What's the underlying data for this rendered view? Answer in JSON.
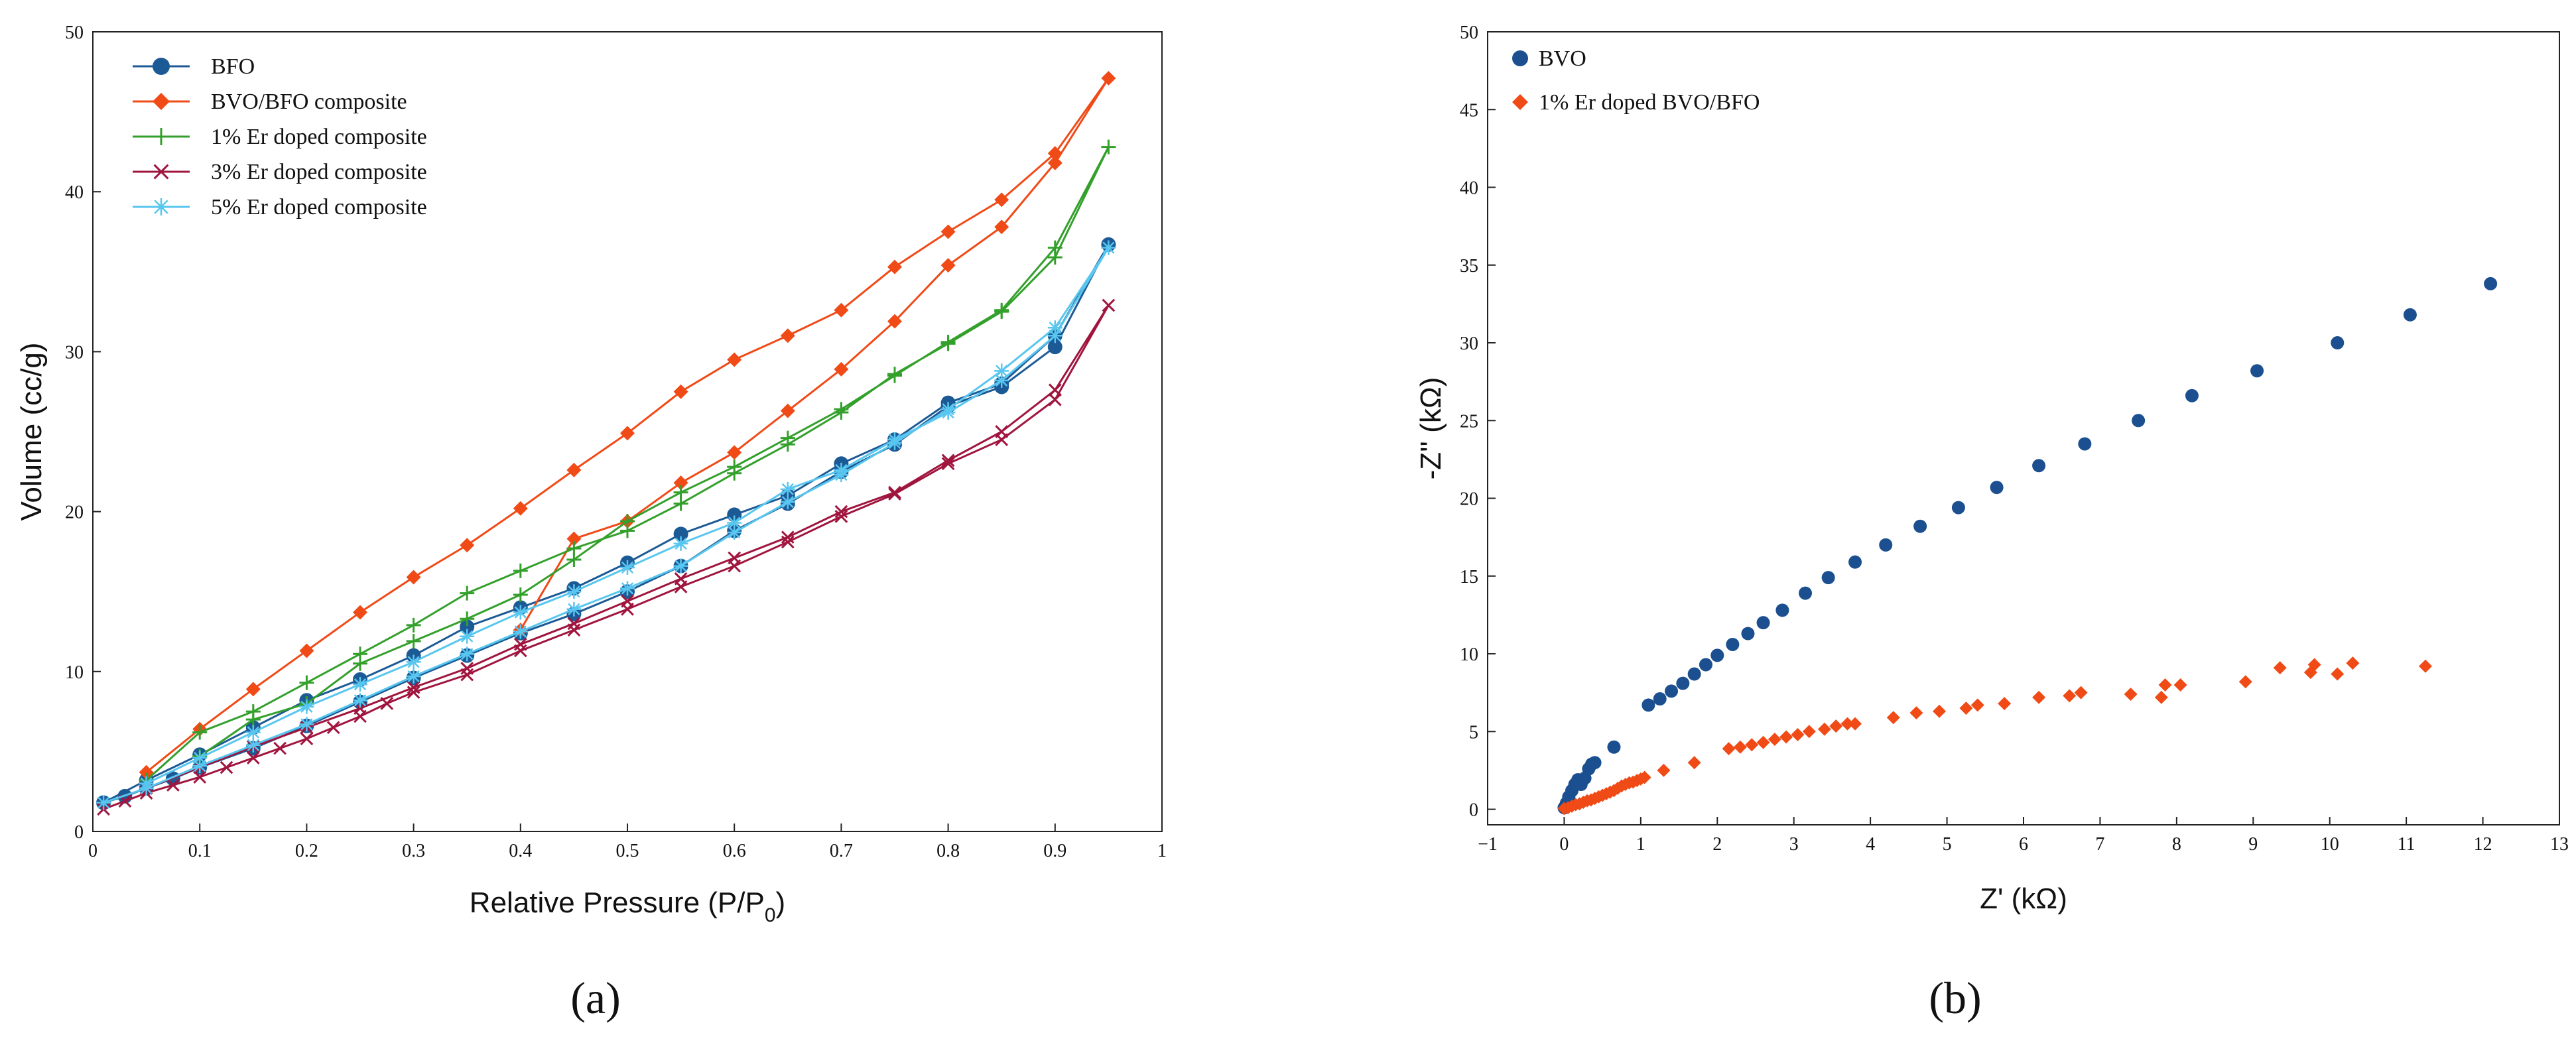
{
  "chart_data": [
    {
      "type": "line",
      "panel_label": "(a)",
      "xlabel": "Relative Pressure (P/P",
      "xlabel_subscript": "0",
      "xlabel_suffix": ")",
      "ylabel": "Volume (cc/g)",
      "xlim": [
        0,
        1
      ],
      "ylim": [
        0,
        50
      ],
      "xticks": [
        0,
        0.1,
        0.2,
        0.3,
        0.4,
        0.5,
        0.6,
        0.7,
        0.8,
        0.9,
        1
      ],
      "xtick_labels": [
        "0",
        "0.1",
        "0.2",
        "0.3",
        "0.4",
        "0.5",
        "0.6",
        "0.7",
        "0.8",
        "0.9",
        "1"
      ],
      "yticks": [
        0,
        10,
        20,
        30,
        40,
        50
      ],
      "ytick_labels": [
        "0",
        "10",
        "20",
        "30",
        "40",
        "50"
      ],
      "legend_position": "top-left",
      "series": [
        {
          "name": "BFO",
          "color": "#1c5a96",
          "marker": "circle",
          "x": [
            0.01,
            0.03,
            0.05,
            0.075,
            0.1,
            0.15,
            0.2,
            0.25,
            0.3,
            0.35,
            0.4,
            0.45,
            0.5,
            0.55,
            0.6,
            0.65,
            0.7,
            0.75,
            0.8,
            0.85,
            0.9,
            0.95,
            0.9,
            0.85,
            0.8,
            0.75,
            0.7,
            0.65,
            0.6,
            0.55,
            0.5,
            0.45,
            0.4,
            0.35,
            0.3,
            0.25,
            0.2,
            0.15,
            0.1,
            0.05,
            0.01
          ],
          "y": [
            1.8,
            2.2,
            2.7,
            3.3,
            4.0,
            5.2,
            6.6,
            8.1,
            9.6,
            11.0,
            12.4,
            13.6,
            15.0,
            16.6,
            18.8,
            20.5,
            22.5,
            24.2,
            26.6,
            27.8,
            30.3,
            36.7,
            31.0,
            28.0,
            26.8,
            24.5,
            23.0,
            21.0,
            19.8,
            18.6,
            16.8,
            15.2,
            14.0,
            12.8,
            11.0,
            9.5,
            8.2,
            6.5,
            4.8,
            3.2,
            1.8
          ]
        },
        {
          "name": "BVO/BFO composite",
          "color": "#f04a17",
          "marker": "diamond",
          "x": [
            0.05,
            0.1,
            0.15,
            0.2,
            0.25,
            0.3,
            0.35,
            0.4,
            0.45,
            0.5,
            0.55,
            0.6,
            0.65,
            0.7,
            0.75,
            0.8,
            0.85,
            0.9,
            0.95,
            0.9,
            0.85,
            0.8,
            0.75,
            0.7,
            0.65,
            0.6,
            0.55,
            0.5,
            0.45,
            0.4
          ],
          "y": [
            3.7,
            6.4,
            8.9,
            11.3,
            13.7,
            15.9,
            17.9,
            20.2,
            22.6,
            24.9,
            27.5,
            29.5,
            31.0,
            32.6,
            35.3,
            37.5,
            39.5,
            42.4,
            47.1,
            41.8,
            37.8,
            35.4,
            31.9,
            28.9,
            26.3,
            23.7,
            21.8,
            19.4,
            18.3,
            12.6
          ]
        },
        {
          "name": "1% Er doped composite",
          "color": "#34a02c",
          "marker": "plus",
          "x": [
            0.05,
            0.1,
            0.15,
            0.2,
            0.25,
            0.3,
            0.35,
            0.4,
            0.45,
            0.5,
            0.55,
            0.6,
            0.65,
            0.7,
            0.75,
            0.8,
            0.85,
            0.9,
            0.95,
            0.9,
            0.85,
            0.8,
            0.75,
            0.7,
            0.65,
            0.6,
            0.55,
            0.5,
            0.45,
            0.4,
            0.35,
            0.3,
            0.25,
            0.2,
            0.15,
            0.1
          ],
          "y": [
            3.2,
            6.2,
            7.5,
            9.3,
            11.1,
            12.9,
            14.9,
            16.3,
            17.7,
            18.8,
            20.5,
            22.4,
            24.2,
            26.2,
            28.6,
            30.5,
            32.5,
            35.9,
            42.8,
            36.5,
            32.6,
            30.6,
            28.5,
            26.4,
            24.6,
            22.8,
            21.2,
            19.4,
            17.0,
            14.8,
            13.3,
            11.9,
            10.5,
            8.0,
            7.0,
            4.7
          ]
        },
        {
          "name": "3% Er doped composite",
          "color": "#a0153e",
          "marker": "x",
          "x": [
            0.01,
            0.03,
            0.05,
            0.075,
            0.1,
            0.125,
            0.15,
            0.175,
            0.2,
            0.225,
            0.25,
            0.275,
            0.3,
            0.35,
            0.4,
            0.45,
            0.5,
            0.55,
            0.6,
            0.65,
            0.7,
            0.75,
            0.8,
            0.85,
            0.9,
            0.95,
            0.9,
            0.85,
            0.8,
            0.75,
            0.7,
            0.65,
            0.6,
            0.55,
            0.5,
            0.45,
            0.4,
            0.35,
            0.3,
            0.25,
            0.2,
            0.15,
            0.1,
            0.05
          ],
          "y": [
            1.4,
            1.9,
            2.4,
            2.9,
            3.4,
            4.0,
            4.6,
            5.2,
            5.8,
            6.5,
            7.2,
            8.0,
            8.7,
            9.8,
            11.3,
            12.6,
            13.9,
            15.3,
            16.6,
            18.1,
            19.7,
            21.1,
            23.0,
            24.5,
            27.0,
            32.9,
            27.6,
            25.0,
            23.2,
            21.2,
            20.0,
            18.4,
            17.1,
            15.8,
            14.4,
            13.0,
            11.7,
            10.2,
            9.0,
            7.7,
            6.5,
            5.3,
            4.0,
            2.7
          ]
        },
        {
          "name": "5% Er doped composite",
          "color": "#58c6ef",
          "marker": "star",
          "x": [
            0.01,
            0.05,
            0.1,
            0.15,
            0.2,
            0.25,
            0.3,
            0.35,
            0.4,
            0.45,
            0.5,
            0.55,
            0.6,
            0.65,
            0.7,
            0.75,
            0.8,
            0.85,
            0.9,
            0.95,
            0.9,
            0.85,
            0.8,
            0.75,
            0.7,
            0.65,
            0.6,
            0.55,
            0.5,
            0.45,
            0.4,
            0.35,
            0.3,
            0.25,
            0.2,
            0.15,
            0.1,
            0.05
          ],
          "y": [
            1.8,
            2.7,
            4.1,
            5.4,
            6.7,
            8.2,
            9.7,
            11.1,
            12.5,
            13.9,
            15.2,
            16.6,
            18.7,
            20.6,
            22.3,
            24.3,
            26.4,
            28.8,
            31.5,
            36.5,
            31.0,
            28.2,
            26.2,
            24.5,
            22.6,
            21.4,
            19.3,
            18.0,
            16.5,
            15.0,
            13.7,
            12.2,
            10.6,
            9.2,
            7.8,
            6.2,
            4.6,
            3.0
          ]
        }
      ]
    },
    {
      "type": "scatter",
      "panel_label": "(b)",
      "xlabel": "Z' (kΩ)",
      "ylabel": "-Z'' (kΩ)",
      "xlim": [
        -1,
        13
      ],
      "ylim": [
        -1,
        50
      ],
      "xticks": [
        -1,
        0,
        1,
        2,
        3,
        4,
        5,
        6,
        7,
        8,
        9,
        10,
        11,
        12,
        13
      ],
      "xtick_labels": [
        "−1",
        "0",
        "1",
        "2",
        "3",
        "4",
        "5",
        "6",
        "7",
        "8",
        "9",
        "10",
        "11",
        "12",
        "13"
      ],
      "yticks": [
        0,
        5,
        10,
        15,
        20,
        25,
        30,
        35,
        40,
        45,
        50
      ],
      "ytick_labels": [
        "0",
        "5",
        "10",
        "15",
        "20",
        "25",
        "30",
        "35",
        "40",
        "45",
        "50"
      ],
      "legend_position": "top-left",
      "series": [
        {
          "name": "BVO",
          "color": "#1b4f8f",
          "marker": "circle",
          "x": [
            0.0,
            0.03,
            0.06,
            0.1,
            0.14,
            0.18,
            0.22,
            0.27,
            0.32,
            0.36,
            0.4,
            0.65,
            1.1,
            1.25,
            1.4,
            1.55,
            1.7,
            1.85,
            2.0,
            2.2,
            2.4,
            2.6,
            2.85,
            3.15,
            3.45,
            3.8,
            4.2,
            4.65,
            5.15,
            5.65,
            6.2,
            6.8,
            7.5,
            8.2,
            9.05,
            10.1,
            11.05,
            12.1
          ],
          "y": [
            0.1,
            0.4,
            0.8,
            1.2,
            1.6,
            1.9,
            1.6,
            2.0,
            2.6,
            2.9,
            3.0,
            4.0,
            6.7,
            7.1,
            7.6,
            8.1,
            8.7,
            9.3,
            9.9,
            10.6,
            11.3,
            12.0,
            12.8,
            13.9,
            14.9,
            15.9,
            17.0,
            18.2,
            19.4,
            20.7,
            22.1,
            23.5,
            25.0,
            26.6,
            28.2,
            30.0,
            31.8,
            33.8
          ]
        },
        {
          "name": "1% Er doped BVO/BFO",
          "color": "#f04a17",
          "marker": "diamond",
          "x": [
            0.0,
            0.05,
            0.1,
            0.15,
            0.2,
            0.25,
            0.3,
            0.35,
            0.4,
            0.45,
            0.5,
            0.55,
            0.6,
            0.65,
            0.7,
            0.75,
            0.8,
            0.85,
            0.9,
            0.95,
            1.0,
            1.05,
            1.3,
            1.7,
            2.15,
            2.3,
            2.45,
            2.6,
            2.75,
            2.9,
            3.05,
            3.2,
            3.4,
            3.55,
            3.7,
            3.8,
            4.3,
            4.6,
            4.9,
            5.25,
            5.4,
            5.75,
            6.2,
            6.6,
            6.75,
            7.4,
            7.8,
            7.85,
            8.05,
            8.9,
            9.35,
            9.75,
            9.8,
            10.1,
            10.3,
            11.25
          ],
          "y": [
            0.05,
            0.1,
            0.2,
            0.3,
            0.35,
            0.45,
            0.55,
            0.6,
            0.7,
            0.8,
            0.9,
            1.0,
            1.1,
            1.2,
            1.35,
            1.5,
            1.6,
            1.7,
            1.75,
            1.85,
            1.95,
            2.05,
            2.5,
            3.0,
            3.9,
            4.0,
            4.15,
            4.3,
            4.5,
            4.65,
            4.8,
            5.0,
            5.15,
            5.35,
            5.5,
            5.5,
            5.9,
            6.2,
            6.3,
            6.5,
            6.7,
            6.8,
            7.2,
            7.3,
            7.5,
            7.4,
            7.2,
            8.0,
            8.0,
            8.2,
            9.1,
            8.8,
            9.3,
            8.7,
            9.4,
            9.2
          ]
        }
      ]
    }
  ]
}
